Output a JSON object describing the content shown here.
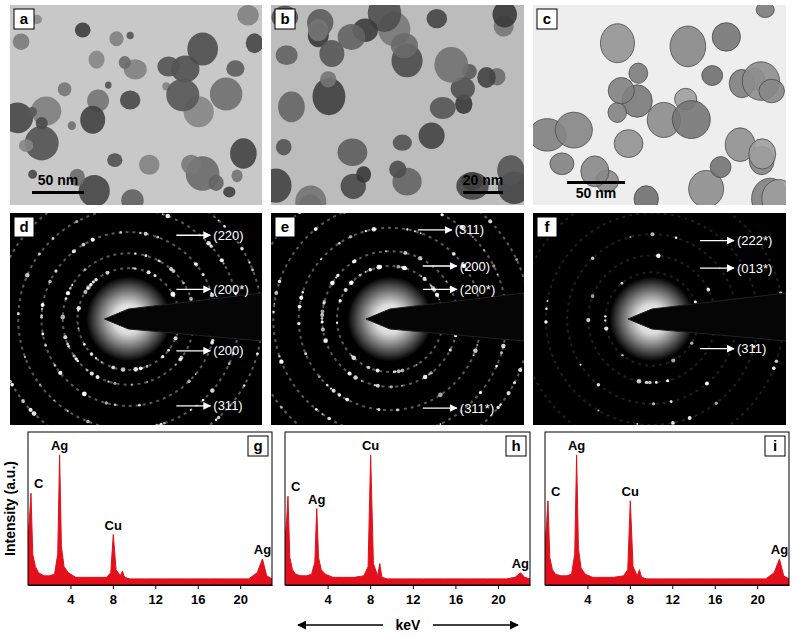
{
  "images": [
    {
      "title": "a",
      "scale_bar": "50 nm"
    },
    {
      "title": "b",
      "scale_bar": "20 nm"
    },
    {
      "title": "c",
      "scale_bar": "50 nm"
    },
    {
      "title": "d",
      "rings": [
        "(220)",
        "(200*)",
        "(200)",
        "(311)"
      ]
    },
    {
      "title": "e",
      "rings": [
        "(311)",
        "(200)",
        "(200*)",
        "(311*)"
      ]
    },
    {
      "title": "f",
      "rings": [
        "(222*)",
        "(013*)",
        "(311)"
      ]
    }
  ],
  "shared_axes": {
    "y_label": "Intensity (a.u.)",
    "x_label": "keV"
  },
  "chart_data": [
    {
      "type": "area",
      "title": "g",
      "color": "#e3101c",
      "x": [
        0,
        0.15,
        0.28,
        0.45,
        0.7,
        1.0,
        1.5,
        2.0,
        2.5,
        2.8,
        2.98,
        3.15,
        3.4,
        3.8,
        4.5,
        5.5,
        6.5,
        7.4,
        7.8,
        8.04,
        8.3,
        8.7,
        8.9,
        9.1,
        9.6,
        11,
        13,
        15,
        17,
        19,
        20.8,
        21.6,
        22.1,
        22.5,
        23
      ],
      "values": [
        30,
        45,
        60,
        20,
        12,
        8,
        6,
        6,
        7,
        20,
        85,
        25,
        12,
        8,
        5,
        5,
        5,
        5,
        8,
        33,
        10,
        6,
        9,
        5,
        4,
        4,
        4,
        4,
        4,
        4,
        4,
        8,
        17,
        6,
        4
      ],
      "xlim": [
        0,
        23
      ],
      "xticks": [
        4,
        8,
        12,
        16,
        20
      ],
      "ylim": [
        0,
        100
      ],
      "tick_labels": "x",
      "annotations": [
        {
          "text": "C",
          "x": 0.28
        },
        {
          "text": "Ag",
          "x": 2.98
        },
        {
          "text": "Cu",
          "x": 8.04
        },
        {
          "text": "Ag",
          "x": 22.1
        }
      ]
    },
    {
      "type": "area",
      "title": "h",
      "color": "#e3101c",
      "x": [
        0,
        0.15,
        0.28,
        0.45,
        0.7,
        1.0,
        1.5,
        2.0,
        2.5,
        2.8,
        2.98,
        3.15,
        3.4,
        3.8,
        4.5,
        5.5,
        6.5,
        7.4,
        7.8,
        8.04,
        8.3,
        8.7,
        8.9,
        9.1,
        9.6,
        11,
        13,
        15,
        17,
        19,
        20.8,
        21.6,
        22.1,
        22.5,
        23
      ],
      "values": [
        30,
        42,
        58,
        18,
        10,
        7,
        6,
        6,
        7,
        15,
        50,
        18,
        10,
        7,
        5,
        5,
        5,
        6,
        12,
        85,
        14,
        6,
        14,
        5,
        4,
        4,
        4,
        4,
        4,
        4,
        4,
        5,
        8,
        5,
        4
      ],
      "xlim": [
        0,
        23
      ],
      "xticks": [
        4,
        8,
        12,
        16,
        20
      ],
      "ylim": [
        0,
        100
      ],
      "tick_labels": "x",
      "annotations": [
        {
          "text": "C",
          "x": 0.28
        },
        {
          "text": "Ag",
          "x": 2.98
        },
        {
          "text": "Cu",
          "x": 8.04
        },
        {
          "text": "Ag",
          "x": 22.1
        }
      ]
    },
    {
      "type": "area",
      "title": "i",
      "color": "#e3101c",
      "x": [
        0,
        0.15,
        0.28,
        0.45,
        0.7,
        1.0,
        1.5,
        2.0,
        2.5,
        2.8,
        2.98,
        3.15,
        3.4,
        3.8,
        4.5,
        5.5,
        6.5,
        7.4,
        7.8,
        8.04,
        8.3,
        8.7,
        8.9,
        9.1,
        9.6,
        11,
        13,
        15,
        17,
        19,
        20.8,
        21.6,
        22.1,
        22.5,
        23
      ],
      "values": [
        28,
        40,
        55,
        18,
        10,
        7,
        6,
        6,
        7,
        20,
        85,
        24,
        11,
        7,
        5,
        5,
        5,
        6,
        10,
        55,
        12,
        6,
        10,
        5,
        4,
        4,
        4,
        4,
        4,
        4,
        4,
        8,
        17,
        6,
        4
      ],
      "xlim": [
        0,
        23
      ],
      "xticks": [
        4,
        8,
        12,
        16,
        20
      ],
      "ylim": [
        0,
        100
      ],
      "tick_labels": "x",
      "annotations": [
        {
          "text": "C",
          "x": 0.28
        },
        {
          "text": "Ag",
          "x": 2.98
        },
        {
          "text": "Cu",
          "x": 8.04
        },
        {
          "text": "Ag",
          "x": 22.1
        }
      ]
    }
  ]
}
